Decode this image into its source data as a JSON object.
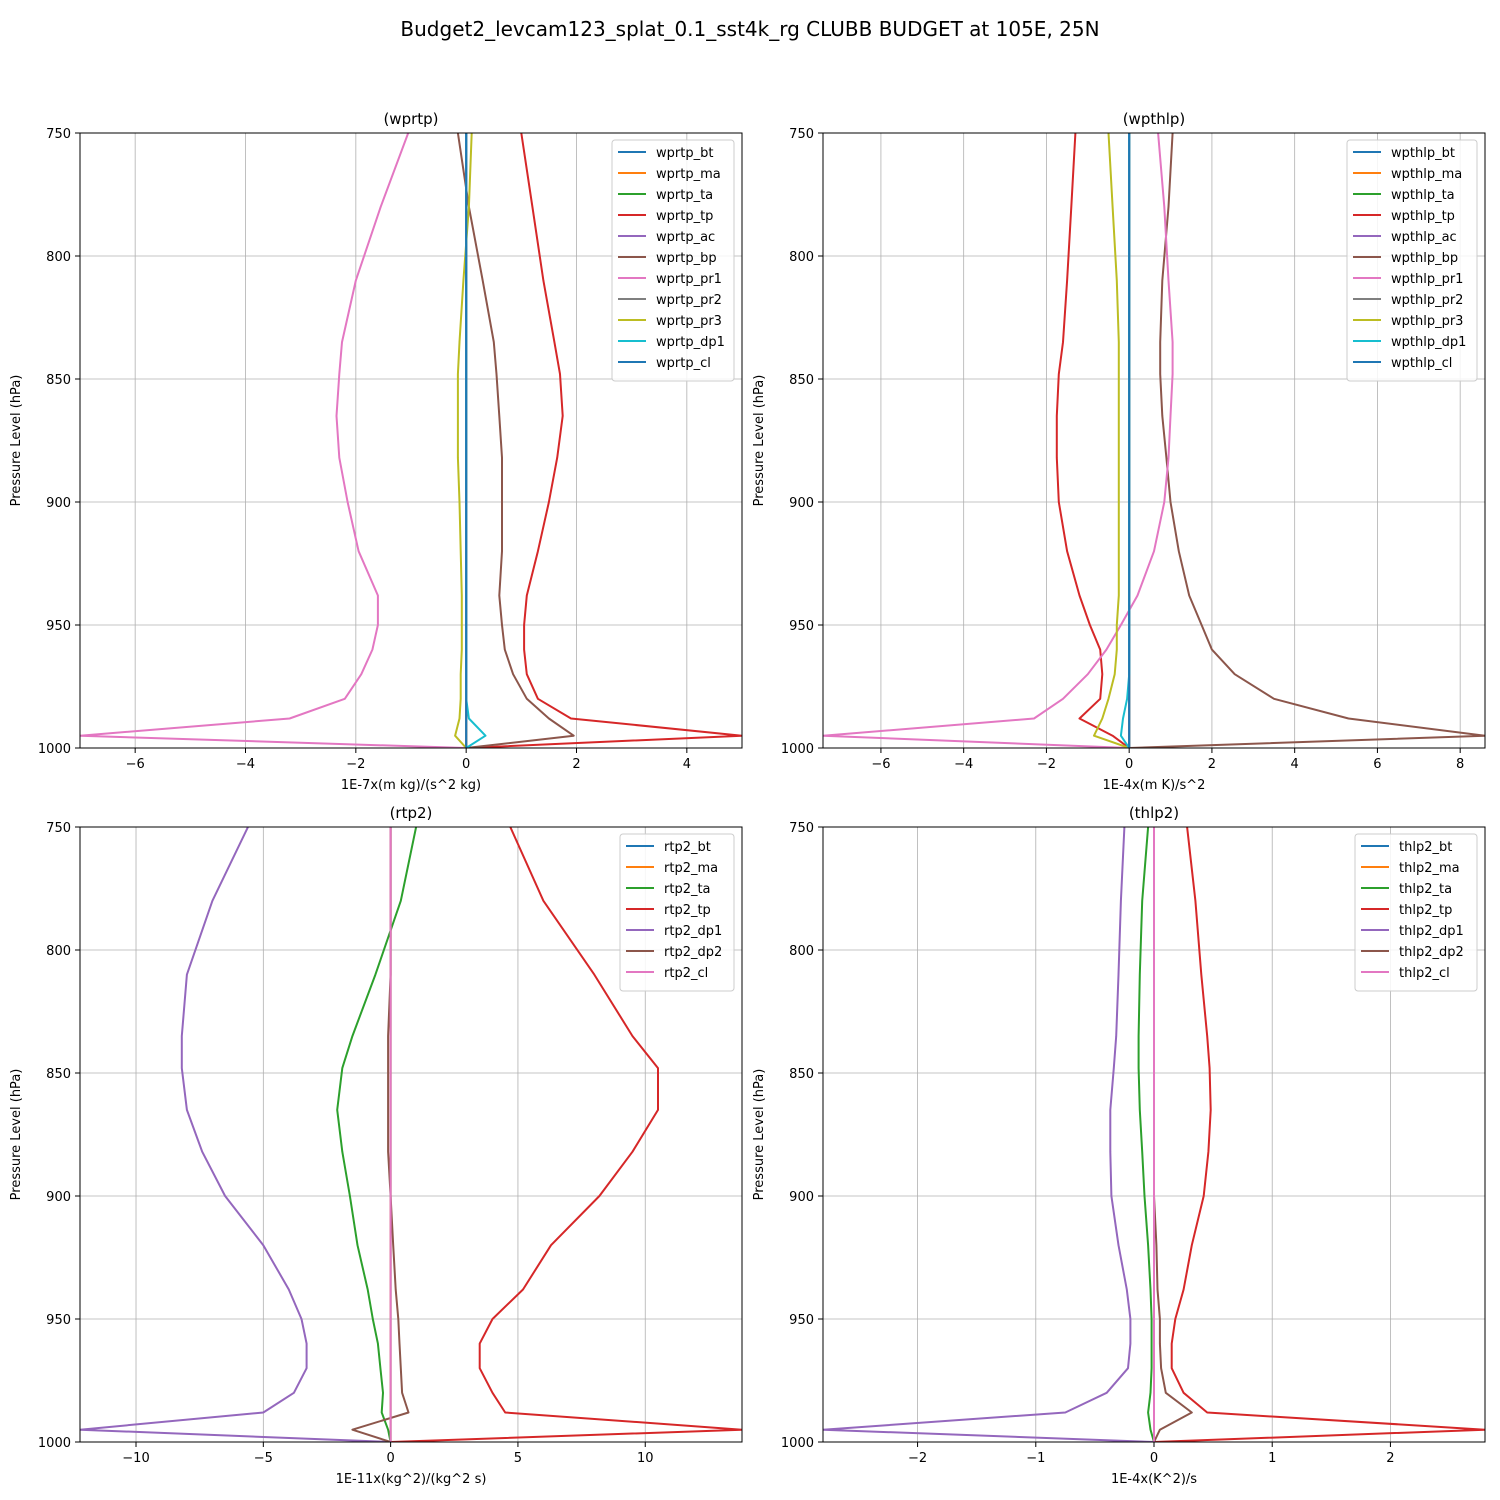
{
  "figure": {
    "title": "Budget2_levcam123_splat_0.1_sst4k_rg CLUBB BUDGET at 105E, 25N"
  },
  "colors": [
    "#1f77b4",
    "#ff7f0e",
    "#2ca02c",
    "#d62728",
    "#9467bd",
    "#8c564b",
    "#e377c2",
    "#7f7f7f",
    "#bcbd22",
    "#17becf"
  ],
  "chart_data": [
    {
      "type": "line",
      "title": "(wprtp)",
      "xlabel": "1E-7x(m kg)/(s^2 kg)",
      "ylabel": "Pressure Level (hPa)",
      "xlim": [
        -7,
        5
      ],
      "ylim": [
        1000,
        750
      ],
      "xticks": [
        -6,
        -4,
        -2,
        0,
        2,
        4
      ],
      "yticks": [
        750,
        800,
        850,
        900,
        950,
        1000
      ],
      "y": [
        750,
        780,
        810,
        835,
        848,
        865,
        882,
        900,
        920,
        938,
        950,
        960,
        970,
        980,
        988,
        995,
        1000
      ],
      "series": [
        {
          "name": "wprtp_bt",
          "color_index": 0,
          "values": [
            0,
            0,
            0,
            0,
            0,
            0,
            0,
            0,
            0,
            0,
            0,
            0,
            0,
            0,
            0,
            0,
            0
          ]
        },
        {
          "name": "wprtp_ma",
          "color_index": 1,
          "values": [
            0,
            0,
            0,
            0,
            0,
            0,
            0,
            0,
            0,
            0,
            0,
            0,
            0,
            0,
            0,
            0,
            0
          ]
        },
        {
          "name": "wprtp_ta",
          "color_index": 2,
          "values": [
            0,
            0,
            0,
            0,
            0,
            0,
            0,
            0,
            0,
            0,
            0,
            0,
            0,
            0,
            0,
            0,
            0
          ]
        },
        {
          "name": "wprtp_tp",
          "color_index": 3,
          "values": [
            1.0,
            1.2,
            1.4,
            1.6,
            1.7,
            1.75,
            1.65,
            1.5,
            1.3,
            1.1,
            1.05,
            1.05,
            1.1,
            1.3,
            1.9,
            5.0,
            0
          ]
        },
        {
          "name": "wprtp_ac",
          "color_index": 4,
          "values": [
            0,
            0,
            0,
            0,
            0,
            0,
            0,
            0,
            0,
            0,
            0,
            0,
            0,
            0,
            0,
            0,
            0
          ]
        },
        {
          "name": "wprtp_bp",
          "color_index": 5,
          "values": [
            -0.15,
            0.05,
            0.3,
            0.5,
            0.55,
            0.6,
            0.65,
            0.65,
            0.65,
            0.6,
            0.65,
            0.7,
            0.85,
            1.1,
            1.5,
            1.95,
            0
          ]
        },
        {
          "name": "wprtp_pr1",
          "color_index": 6,
          "values": [
            -1.05,
            -1.55,
            -2.0,
            -2.25,
            -2.3,
            -2.35,
            -2.3,
            -2.15,
            -1.95,
            -1.6,
            -1.6,
            -1.7,
            -1.9,
            -2.2,
            -3.2,
            -7.0,
            0
          ]
        },
        {
          "name": "wprtp_pr2",
          "color_index": 7,
          "values": [
            0,
            0,
            0,
            0,
            0,
            0,
            0,
            0,
            0,
            0,
            0,
            0,
            0,
            0,
            0,
            0,
            0
          ]
        },
        {
          "name": "wprtp_pr3",
          "color_index": 8,
          "values": [
            0.1,
            0.05,
            -0.05,
            -0.12,
            -0.15,
            -0.15,
            -0.15,
            -0.12,
            -0.1,
            -0.08,
            -0.08,
            -0.08,
            -0.1,
            -0.1,
            -0.12,
            -0.2,
            0
          ]
        },
        {
          "name": "wprtp_dp1",
          "color_index": 9,
          "values": [
            0,
            0,
            0,
            0,
            0,
            0,
            0,
            0,
            0,
            0,
            0,
            0,
            0,
            0,
            0.05,
            0.35,
            0
          ]
        },
        {
          "name": "wprtp_cl",
          "color_index": 0,
          "values": [
            0,
            0,
            0,
            0,
            0,
            0,
            0,
            0,
            0,
            0,
            0,
            0,
            0,
            0,
            0,
            0,
            0
          ]
        }
      ]
    },
    {
      "type": "line",
      "title": "(wpthlp)",
      "xlabel": "1E-4x(m K)/s^2",
      "ylabel": "Pressure Level (hPa)",
      "xlim": [
        -7.4,
        8.6
      ],
      "ylim": [
        1000,
        750
      ],
      "xticks": [
        -6,
        -4,
        -2,
        0,
        2,
        4,
        6,
        8
      ],
      "yticks": [
        750,
        800,
        850,
        900,
        950,
        1000
      ],
      "y": [
        750,
        780,
        810,
        835,
        848,
        865,
        882,
        900,
        920,
        938,
        950,
        960,
        970,
        980,
        988,
        995,
        1000
      ],
      "series": [
        {
          "name": "wpthlp_bt",
          "color_index": 0,
          "values": [
            0,
            0,
            0,
            0,
            0,
            0,
            0,
            0,
            0,
            0,
            0,
            0,
            0,
            0,
            0,
            0,
            0
          ]
        },
        {
          "name": "wpthlp_ma",
          "color_index": 1,
          "values": [
            0,
            0,
            0,
            0,
            0,
            0,
            0,
            0,
            0,
            0,
            0,
            0,
            0,
            0,
            0,
            0,
            0
          ]
        },
        {
          "name": "wpthlp_ta",
          "color_index": 2,
          "values": [
            0,
            0,
            0,
            0,
            0,
            0,
            0,
            0,
            0,
            0,
            0,
            0,
            0,
            0,
            0,
            0,
            0
          ]
        },
        {
          "name": "wpthlp_tp",
          "color_index": 3,
          "values": [
            -1.3,
            -1.4,
            -1.5,
            -1.6,
            -1.7,
            -1.75,
            -1.75,
            -1.7,
            -1.5,
            -1.2,
            -0.95,
            -0.7,
            -0.65,
            -0.7,
            -1.2,
            -0.4,
            0
          ]
        },
        {
          "name": "wpthlp_ac",
          "color_index": 4,
          "values": [
            0,
            0,
            0,
            0,
            0,
            0,
            0,
            0,
            0,
            0,
            0,
            0,
            0,
            0,
            0,
            0,
            0
          ]
        },
        {
          "name": "wpthlp_bp",
          "color_index": 5,
          "values": [
            1.05,
            0.95,
            0.8,
            0.75,
            0.75,
            0.8,
            0.9,
            1.0,
            1.2,
            1.45,
            1.75,
            2.0,
            2.55,
            3.5,
            5.3,
            8.6,
            0
          ]
        },
        {
          "name": "wpthlp_pr1",
          "color_index": 6,
          "values": [
            0.7,
            0.85,
            0.95,
            1.05,
            1.05,
            1.0,
            0.95,
            0.85,
            0.6,
            0.2,
            -0.2,
            -0.55,
            -1.0,
            -1.6,
            -2.3,
            -7.4,
            0
          ]
        },
        {
          "name": "wpthlp_pr2",
          "color_index": 7,
          "values": [
            0,
            0,
            0,
            0,
            0,
            0,
            0,
            0,
            0,
            0,
            0,
            0,
            0,
            0,
            0,
            0,
            0
          ]
        },
        {
          "name": "wpthlp_pr3",
          "color_index": 8,
          "values": [
            -0.5,
            -0.4,
            -0.3,
            -0.25,
            -0.25,
            -0.25,
            -0.25,
            -0.25,
            -0.25,
            -0.25,
            -0.3,
            -0.3,
            -0.35,
            -0.5,
            -0.65,
            -0.85,
            0
          ]
        },
        {
          "name": "wpthlp_dp1",
          "color_index": 9,
          "values": [
            0,
            0,
            0,
            0,
            0,
            0,
            0,
            0,
            0,
            0,
            0,
            0,
            0,
            -0.05,
            -0.15,
            -0.2,
            0
          ]
        },
        {
          "name": "wpthlp_cl",
          "color_index": 0,
          "values": [
            0,
            0,
            0,
            0,
            0,
            0,
            0,
            0,
            0,
            0,
            0,
            0,
            0,
            0,
            0,
            0,
            0
          ]
        }
      ]
    },
    {
      "type": "line",
      "title": "(rtp2)",
      "xlabel": "1E-11x(kg^2)/(kg^2 s)",
      "ylabel": "Pressure Level (hPa)",
      "xlim": [
        -12.2,
        13.8
      ],
      "ylim": [
        1000,
        750
      ],
      "xticks": [
        -10,
        -5,
        0,
        5,
        10
      ],
      "yticks": [
        750,
        800,
        850,
        900,
        950,
        1000
      ],
      "y": [
        750,
        780,
        810,
        835,
        848,
        865,
        882,
        900,
        920,
        938,
        950,
        960,
        970,
        980,
        988,
        995,
        1000
      ],
      "series": [
        {
          "name": "rtp2_bt",
          "color_index": 0,
          "values": [
            0,
            0,
            0,
            0,
            0,
            0,
            0,
            0,
            0,
            0,
            0,
            0,
            0,
            0,
            0,
            0,
            0
          ]
        },
        {
          "name": "rtp2_ma",
          "color_index": 1,
          "values": [
            0,
            0,
            0,
            0,
            0,
            0,
            0,
            0,
            0,
            0,
            0,
            0,
            0,
            0,
            0,
            0,
            0
          ]
        },
        {
          "name": "rtp2_ta",
          "color_index": 2,
          "values": [
            1.0,
            0.4,
            -0.6,
            -1.5,
            -1.9,
            -2.1,
            -1.9,
            -1.6,
            -1.3,
            -0.9,
            -0.7,
            -0.5,
            -0.4,
            -0.3,
            -0.35,
            -0.1,
            0
          ]
        },
        {
          "name": "rtp2_tp",
          "color_index": 3,
          "values": [
            4.7,
            6.0,
            8.0,
            9.5,
            10.5,
            10.5,
            9.5,
            8.2,
            6.3,
            5.2,
            4.0,
            3.5,
            3.5,
            4.0,
            4.5,
            13.8,
            0
          ]
        },
        {
          "name": "rtp2_dp1",
          "color_index": 4,
          "values": [
            -5.6,
            -7.0,
            -8.0,
            -8.2,
            -8.2,
            -8.0,
            -7.4,
            -6.5,
            -5.0,
            -4.0,
            -3.5,
            -3.3,
            -3.3,
            -3.8,
            -5.0,
            -12.2,
            0
          ]
        },
        {
          "name": "rtp2_dp2",
          "color_index": 5,
          "values": [
            0,
            0,
            0,
            -0.1,
            -0.1,
            -0.1,
            -0.1,
            0,
            0.1,
            0.2,
            0.3,
            0.35,
            0.4,
            0.45,
            0.7,
            -1.5,
            0
          ]
        },
        {
          "name": "rtp2_cl",
          "color_index": 6,
          "values": [
            0,
            0,
            0,
            0,
            0,
            0,
            0,
            0,
            0,
            0,
            0,
            0,
            0,
            0,
            0,
            0,
            0
          ]
        }
      ]
    },
    {
      "type": "line",
      "title": "(thlp2)",
      "xlabel": "1E-4x(K^2)/s",
      "ylabel": "Pressure Level (hPa)",
      "xlim": [
        -2.8,
        2.8
      ],
      "ylim": [
        1000,
        750
      ],
      "xticks": [
        -2,
        -1,
        0,
        1,
        2
      ],
      "yticks": [
        750,
        800,
        850,
        900,
        950,
        1000
      ],
      "y": [
        750,
        780,
        810,
        835,
        848,
        865,
        882,
        900,
        920,
        938,
        950,
        960,
        970,
        980,
        988,
        995,
        1000
      ],
      "series": [
        {
          "name": "thlp2_bt",
          "color_index": 0,
          "values": [
            0,
            0,
            0,
            0,
            0,
            0,
            0,
            0,
            0,
            0,
            0,
            0,
            0,
            0,
            0,
            0,
            0
          ]
        },
        {
          "name": "thlp2_ma",
          "color_index": 1,
          "values": [
            0,
            0,
            0,
            0,
            0,
            0,
            0,
            0,
            0,
            0,
            0,
            0,
            0,
            0,
            0,
            0,
            0
          ]
        },
        {
          "name": "thlp2_ta",
          "color_index": 2,
          "values": [
            -0.05,
            -0.1,
            -0.12,
            -0.13,
            -0.13,
            -0.12,
            -0.1,
            -0.08,
            -0.05,
            -0.03,
            -0.02,
            -0.02,
            -0.02,
            -0.03,
            -0.05,
            -0.03,
            0
          ]
        },
        {
          "name": "thlp2_tp",
          "color_index": 3,
          "values": [
            0.28,
            0.35,
            0.4,
            0.45,
            0.47,
            0.48,
            0.46,
            0.42,
            0.32,
            0.25,
            0.18,
            0.15,
            0.15,
            0.25,
            0.45,
            2.8,
            0
          ]
        },
        {
          "name": "thlp2_dp1",
          "color_index": 4,
          "values": [
            -0.25,
            -0.28,
            -0.3,
            -0.32,
            -0.34,
            -0.37,
            -0.37,
            -0.36,
            -0.3,
            -0.23,
            -0.2,
            -0.2,
            -0.22,
            -0.4,
            -0.75,
            -2.8,
            0
          ]
        },
        {
          "name": "thlp2_dp2",
          "color_index": 5,
          "values": [
            0,
            0,
            0,
            0,
            0,
            0,
            0,
            0,
            0.02,
            0.03,
            0.05,
            0.05,
            0.06,
            0.1,
            0.32,
            0.05,
            0
          ]
        },
        {
          "name": "thlp2_cl",
          "color_index": 6,
          "values": [
            0,
            0,
            0,
            0,
            0,
            0,
            0,
            0,
            0,
            0,
            0,
            0,
            0,
            0,
            0,
            0,
            0
          ]
        }
      ]
    }
  ]
}
